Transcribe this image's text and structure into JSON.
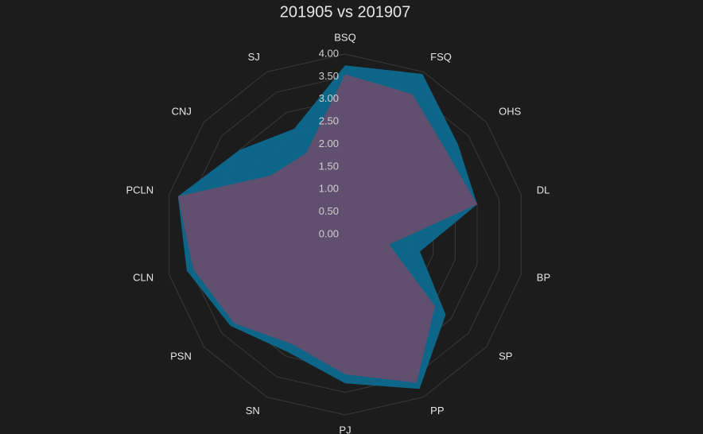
{
  "chart_data": {
    "type": "radar",
    "title": "201905 vs 201907",
    "categories": [
      "BSQ",
      "FSQ",
      "OHS",
      "DL",
      "BP",
      "SP",
      "PP",
      "PJ",
      "SN",
      "PSN",
      "CLN",
      "PCLN",
      "CNJ",
      "SJ"
    ],
    "series": [
      {
        "name": "201905",
        "color": "#0d6a8d",
        "values": [
          3.75,
          3.95,
          3.2,
          3.0,
          1.7,
          2.85,
          3.8,
          3.3,
          2.9,
          3.25,
          3.6,
          3.8,
          3.0,
          2.6
        ]
      },
      {
        "name": "201907",
        "color": "#6a4d6e",
        "values": [
          3.55,
          3.45,
          2.9,
          3.0,
          1.0,
          2.55,
          3.65,
          3.1,
          2.7,
          3.15,
          3.45,
          3.8,
          2.1,
          2.0
        ]
      }
    ],
    "rlim": [
      0,
      4
    ],
    "rticks": [
      {
        "value": 0,
        "label": "0.00"
      },
      {
        "value": 0.5,
        "label": "0.50"
      },
      {
        "value": 1,
        "label": "1.00"
      },
      {
        "value": 1.5,
        "label": "1.50"
      },
      {
        "value": 2,
        "label": "2.00"
      },
      {
        "value": 2.5,
        "label": "2.50"
      },
      {
        "value": 3,
        "label": "3.00"
      },
      {
        "value": 3.5,
        "label": "3.50"
      },
      {
        "value": 4,
        "label": "4.00"
      }
    ],
    "grid": true
  }
}
